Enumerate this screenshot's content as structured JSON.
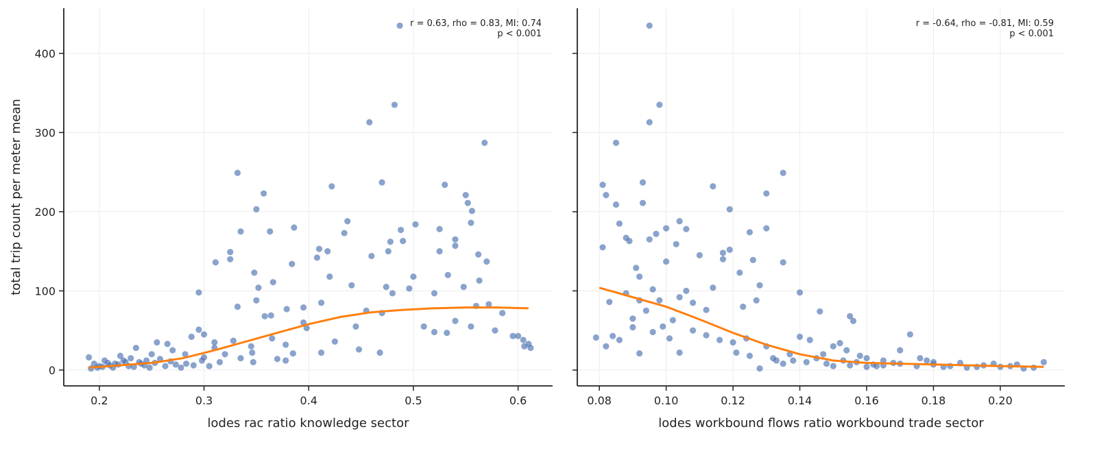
{
  "chart_data": [
    {
      "type": "scatter",
      "xlabel": "lodes rac ratio knowledge sector",
      "ylabel": "total trip count per meter mean",
      "annotation": [
        "r = 0.63, rho = 0.83, MI: 0.74",
        "p < 0.001"
      ],
      "xlim": [
        0.166,
        0.633
      ],
      "ylim": [
        -20,
        457
      ],
      "xticks": [
        0.2,
        0.3,
        0.4,
        0.5,
        0.6
      ],
      "yticks": [
        0,
        100,
        200,
        300,
        400
      ],
      "grid": true,
      "series": [
        {
          "mode": "markers",
          "color": "#4c72b0",
          "x": [
            0.487,
            0.482,
            0.458,
            0.568,
            0.332,
            0.47,
            0.53,
            0.422,
            0.357,
            0.55,
            0.552,
            0.556,
            0.35,
            0.555,
            0.502,
            0.335,
            0.363,
            0.386,
            0.525,
            0.488,
            0.54,
            0.478,
            0.49,
            0.41,
            0.525,
            0.418,
            0.476,
            0.325,
            0.437,
            0.434,
            0.54,
            0.57,
            0.311,
            0.325,
            0.384,
            0.562,
            0.46,
            0.348,
            0.352,
            0.366,
            0.42,
            0.408,
            0.5,
            0.295,
            0.563,
            0.533,
            0.548,
            0.474,
            0.48,
            0.52,
            0.496,
            0.35,
            0.395,
            0.379,
            0.332,
            0.412,
            0.441,
            0.358,
            0.364,
            0.56,
            0.572,
            0.585,
            0.595,
            0.605,
            0.612,
            0.6,
            0.578,
            0.51,
            0.54,
            0.555,
            0.532,
            0.52,
            0.455,
            0.47,
            0.448,
            0.468,
            0.425,
            0.445,
            0.395,
            0.412,
            0.398,
            0.365,
            0.378,
            0.346,
            0.347,
            0.37,
            0.378,
            0.385,
            0.345,
            0.328,
            0.32,
            0.31,
            0.3,
            0.305,
            0.295,
            0.3,
            0.31,
            0.288,
            0.282,
            0.27,
            0.265,
            0.255,
            0.25,
            0.245,
            0.24,
            0.235,
            0.23,
            0.225,
            0.22,
            0.215,
            0.21,
            0.205,
            0.2,
            0.195,
            0.19,
            0.192,
            0.198,
            0.203,
            0.208,
            0.213,
            0.218,
            0.223,
            0.228,
            0.233,
            0.238,
            0.243,
            0.248,
            0.253,
            0.258,
            0.263,
            0.268,
            0.273,
            0.278,
            0.283,
            0.29,
            0.298,
            0.315,
            0.335,
            0.61,
            0.606
          ],
          "values": [
            435,
            335,
            313,
            287,
            249,
            237,
            234,
            232,
            223,
            221,
            211,
            201,
            203,
            186,
            184,
            175,
            175,
            180,
            178,
            177,
            165,
            162,
            163,
            153,
            150,
            150,
            150,
            149,
            188,
            173,
            157,
            137,
            136,
            140,
            134,
            146,
            144,
            123,
            104,
            111,
            118,
            142,
            118,
            98,
            113,
            120,
            105,
            105,
            97,
            97,
            103,
            88,
            79,
            77,
            80,
            85,
            107,
            68,
            69,
            81,
            83,
            72,
            43,
            38,
            28,
            43,
            50,
            55,
            62,
            55,
            47,
            48,
            75,
            72,
            26,
            22,
            36,
            55,
            60,
            22,
            53,
            40,
            32,
            22,
            10,
            14,
            12,
            21,
            30,
            37,
            20,
            28,
            16,
            5,
            51,
            45,
            35,
            42,
            20,
            25,
            33,
            35,
            20,
            12,
            8,
            28,
            15,
            10,
            18,
            8,
            6,
            12,
            5,
            8,
            16,
            2,
            3,
            4,
            9,
            3,
            7,
            12,
            5,
            4,
            10,
            6,
            3,
            9,
            14,
            5,
            11,
            7,
            3,
            8,
            6,
            12,
            10,
            15,
            33,
            30
          ]
        },
        {
          "mode": "line",
          "color": "#ff7f0e",
          "x": [
            0.19,
            0.22,
            0.25,
            0.28,
            0.31,
            0.34,
            0.37,
            0.4,
            0.43,
            0.46,
            0.49,
            0.52,
            0.55,
            0.58,
            0.61
          ],
          "values": [
            3,
            6,
            9,
            15,
            25,
            36,
            47,
            58,
            67,
            73,
            76,
            78,
            79,
            79,
            78
          ]
        }
      ]
    },
    {
      "type": "scatter",
      "xlabel": "lodes workbound flows ratio workbound trade sector",
      "annotation": [
        "r = -0.64, rho = -0.81, MI: 0.59",
        "p < 0.001"
      ],
      "xlim": [
        0.0734,
        0.2193
      ],
      "ylim": [
        -20,
        457
      ],
      "sharey": true,
      "xticks": [
        0.08,
        {
          "value": 0.1,
          "label": "0.10"
        },
        0.12,
        0.14,
        0.16,
        0.18,
        {
          "value": 0.2,
          "label": "0.20"
        }
      ],
      "grid": true,
      "series": [
        {
          "mode": "markers",
          "color": "#4c72b0",
          "x": [
            0.095,
            0.098,
            0.095,
            0.085,
            0.135,
            0.081,
            0.093,
            0.13,
            0.114,
            0.082,
            0.093,
            0.085,
            0.119,
            0.086,
            0.13,
            0.1,
            0.104,
            0.106,
            0.097,
            0.125,
            0.081,
            0.088,
            0.089,
            0.095,
            0.117,
            0.119,
            0.103,
            0.11,
            0.122,
            0.117,
            0.135,
            0.091,
            0.092,
            0.1,
            0.126,
            0.128,
            0.114,
            0.096,
            0.14,
            0.106,
            0.088,
            0.098,
            0.092,
            0.104,
            0.108,
            0.123,
            0.127,
            0.112,
            0.094,
            0.09,
            0.102,
            0.099,
            0.096,
            0.083,
            0.079,
            0.082,
            0.084,
            0.086,
            0.09,
            0.092,
            0.101,
            0.104,
            0.108,
            0.112,
            0.116,
            0.12,
            0.124,
            0.128,
            0.125,
            0.121,
            0.13,
            0.133,
            0.137,
            0.14,
            0.143,
            0.146,
            0.155,
            0.156,
            0.15,
            0.152,
            0.154,
            0.158,
            0.16,
            0.165,
            0.17,
            0.173,
            0.176,
            0.18,
            0.145,
            0.148,
            0.15,
            0.155,
            0.16,
            0.165,
            0.17,
            0.175,
            0.18,
            0.185,
            0.19,
            0.195,
            0.2,
            0.205,
            0.21,
            0.213,
            0.198,
            0.188,
            0.178,
            0.168,
            0.162,
            0.142,
            0.138,
            0.135,
            0.132,
            0.147,
            0.153,
            0.157,
            0.163,
            0.183,
            0.193,
            0.203,
            0.207
          ],
          "values": [
            435,
            335,
            313,
            287,
            249,
            234,
            237,
            223,
            232,
            221,
            211,
            209,
            203,
            185,
            179,
            179,
            188,
            178,
            172,
            174,
            155,
            167,
            163,
            165,
            148,
            152,
            159,
            145,
            123,
            140,
            136,
            129,
            118,
            137,
            139,
            107,
            104,
            102,
            98,
            100,
            97,
            88,
            88,
            92,
            85,
            80,
            88,
            76,
            75,
            65,
            63,
            55,
            48,
            86,
            41,
            30,
            43,
            38,
            54,
            21,
            40,
            22,
            50,
            44,
            38,
            35,
            40,
            2,
            18,
            22,
            30,
            12,
            20,
            42,
            38,
            74,
            68,
            62,
            30,
            34,
            25,
            18,
            15,
            12,
            25,
            45,
            15,
            10,
            15,
            8,
            5,
            6,
            4,
            6,
            8,
            5,
            7,
            5,
            3,
            6,
            4,
            7,
            3,
            10,
            8,
            9,
            12,
            9,
            7,
            10,
            12,
            8,
            15,
            20,
            12,
            10,
            5,
            4,
            4,
            5,
            2
          ]
        },
        {
          "mode": "line",
          "color": "#ff7f0e",
          "x": [
            0.08,
            0.09,
            0.1,
            0.11,
            0.12,
            0.13,
            0.14,
            0.15,
            0.16,
            0.17,
            0.18,
            0.19,
            0.2,
            0.213
          ],
          "values": [
            104,
            92,
            80,
            64,
            47,
            32,
            20,
            12,
            9,
            8,
            7,
            6,
            5,
            4
          ]
        }
      ]
    }
  ]
}
